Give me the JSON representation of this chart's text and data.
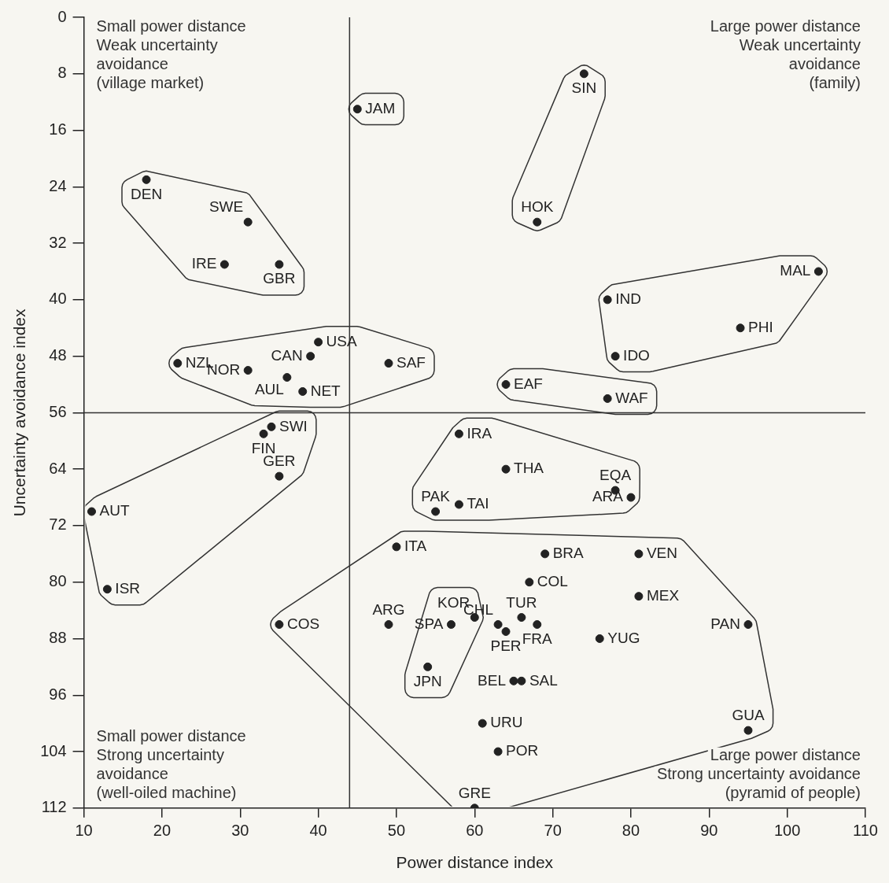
{
  "chart_data": {
    "type": "scatter",
    "xlabel": "Power distance index",
    "ylabel": "Uncertainty avoidance index",
    "xlim": [
      10,
      110
    ],
    "xticks": [
      10,
      20,
      30,
      40,
      50,
      60,
      70,
      80,
      90,
      100,
      110
    ],
    "ylim": [
      112,
      0
    ],
    "yticks": [
      0,
      8,
      16,
      24,
      32,
      40,
      48,
      56,
      64,
      72,
      80,
      88,
      96,
      104,
      112
    ],
    "grid": false,
    "legend": false,
    "marker": "circle",
    "ref_lines": [
      {
        "axis": "x",
        "value": 44,
        "color": "#333333"
      },
      {
        "axis": "y",
        "value": 56,
        "color": "#333333"
      }
    ],
    "annotations": [
      "Small power distance\nWeak uncertainty\navoidance\n(village market)",
      "Large power distance\nWeak uncertainty\navoidance\n(family)",
      "Small power distance\nStrong uncertainty\navoidance\n(well-oiled machine)",
      "Large power distance\nStrong uncertainty avoidance\n(pyramid of people)"
    ],
    "series": [
      {
        "name": "DEN",
        "color": "#222222",
        "x": [
          18
        ],
        "values": [
          23
        ]
      },
      {
        "name": "SWE",
        "color": "#222222",
        "x": [
          31
        ],
        "values": [
          29
        ]
      },
      {
        "name": "IRE",
        "color": "#222222",
        "x": [
          28
        ],
        "values": [
          35
        ]
      },
      {
        "name": "GBR",
        "color": "#222222",
        "x": [
          35
        ],
        "values": [
          35
        ]
      },
      {
        "name": "NZL",
        "color": "#222222",
        "x": [
          22
        ],
        "values": [
          49
        ]
      },
      {
        "name": "NOR",
        "color": "#222222",
        "x": [
          31
        ],
        "values": [
          50
        ]
      },
      {
        "name": "AUL",
        "color": "#222222",
        "x": [
          36
        ],
        "values": [
          51
        ]
      },
      {
        "name": "CAN",
        "color": "#222222",
        "x": [
          39
        ],
        "values": [
          48
        ]
      },
      {
        "name": "USA",
        "color": "#222222",
        "x": [
          40
        ],
        "values": [
          46
        ]
      },
      {
        "name": "NET",
        "color": "#222222",
        "x": [
          38
        ],
        "values": [
          53
        ]
      },
      {
        "name": "SAF",
        "color": "#222222",
        "x": [
          49
        ],
        "values": [
          49
        ]
      },
      {
        "name": "JAM",
        "color": "#222222",
        "x": [
          45
        ],
        "values": [
          13
        ]
      },
      {
        "name": "SIN",
        "color": "#222222",
        "x": [
          74
        ],
        "values": [
          8
        ]
      },
      {
        "name": "HOK",
        "color": "#222222",
        "x": [
          68
        ],
        "values": [
          29
        ]
      },
      {
        "name": "MAL",
        "color": "#222222",
        "x": [
          104
        ],
        "values": [
          36
        ]
      },
      {
        "name": "IND",
        "color": "#222222",
        "x": [
          77
        ],
        "values": [
          40
        ]
      },
      {
        "name": "PHI",
        "color": "#222222",
        "x": [
          94
        ],
        "values": [
          44
        ]
      },
      {
        "name": "IDO",
        "color": "#222222",
        "x": [
          78
        ],
        "values": [
          48
        ]
      },
      {
        "name": "EAF",
        "color": "#222222",
        "x": [
          64
        ],
        "values": [
          52
        ]
      },
      {
        "name": "WAF",
        "color": "#222222",
        "x": [
          77
        ],
        "values": [
          54
        ]
      },
      {
        "name": "SWI",
        "color": "#222222",
        "x": [
          34
        ],
        "values": [
          58
        ]
      },
      {
        "name": "FIN",
        "color": "#222222",
        "x": [
          33
        ],
        "values": [
          59
        ]
      },
      {
        "name": "GER",
        "color": "#222222",
        "x": [
          35
        ],
        "values": [
          65
        ]
      },
      {
        "name": "AUT",
        "color": "#222222",
        "x": [
          11
        ],
        "values": [
          70
        ]
      },
      {
        "name": "ISR",
        "color": "#222222",
        "x": [
          13
        ],
        "values": [
          81
        ]
      },
      {
        "name": "IRA",
        "color": "#222222",
        "x": [
          58
        ],
        "values": [
          59
        ]
      },
      {
        "name": "THA",
        "color": "#222222",
        "x": [
          64
        ],
        "values": [
          64
        ]
      },
      {
        "name": "EQA",
        "color": "#222222",
        "x": [
          78
        ],
        "values": [
          67
        ]
      },
      {
        "name": "ARA",
        "color": "#222222",
        "x": [
          80
        ],
        "values": [
          68
        ]
      },
      {
        "name": "PAK",
        "color": "#222222",
        "x": [
          55
        ],
        "values": [
          70
        ]
      },
      {
        "name": "TAI",
        "color": "#222222",
        "x": [
          58
        ],
        "values": [
          69
        ]
      },
      {
        "name": "ITA",
        "color": "#222222",
        "x": [
          50
        ],
        "values": [
          75
        ]
      },
      {
        "name": "BRA",
        "color": "#222222",
        "x": [
          69
        ],
        "values": [
          76
        ]
      },
      {
        "name": "VEN",
        "color": "#222222",
        "x": [
          81
        ],
        "values": [
          76
        ]
      },
      {
        "name": "COL",
        "color": "#222222",
        "x": [
          67
        ],
        "values": [
          80
        ]
      },
      {
        "name": "MEX",
        "color": "#222222",
        "x": [
          81
        ],
        "values": [
          82
        ]
      },
      {
        "name": "CHL",
        "color": "#222222",
        "x": [
          63
        ],
        "values": [
          86
        ]
      },
      {
        "name": "TUR",
        "color": "#222222",
        "x": [
          66
        ],
        "values": [
          85
        ]
      },
      {
        "name": "FRA",
        "color": "#222222",
        "x": [
          68
        ],
        "values": [
          86
        ]
      },
      {
        "name": "ARG",
        "color": "#222222",
        "x": [
          49
        ],
        "values": [
          86
        ]
      },
      {
        "name": "KOR",
        "color": "#222222",
        "x": [
          60
        ],
        "values": [
          85
        ]
      },
      {
        "name": "SPA",
        "color": "#222222",
        "x": [
          57
        ],
        "values": [
          86
        ]
      },
      {
        "name": "YUG",
        "color": "#222222",
        "x": [
          76
        ],
        "values": [
          88
        ]
      },
      {
        "name": "PAN",
        "color": "#222222",
        "x": [
          95
        ],
        "values": [
          86
        ]
      },
      {
        "name": "COS",
        "color": "#222222",
        "x": [
          35
        ],
        "values": [
          86
        ]
      },
      {
        "name": "PER",
        "color": "#222222",
        "x": [
          64
        ],
        "values": [
          87
        ]
      },
      {
        "name": "BEL",
        "color": "#222222",
        "x": [
          65
        ],
        "values": [
          94
        ]
      },
      {
        "name": "SAL",
        "color": "#222222",
        "x": [
          66
        ],
        "values": [
          94
        ]
      },
      {
        "name": "GUA",
        "color": "#222222",
        "x": [
          95
        ],
        "values": [
          101
        ]
      },
      {
        "name": "URU",
        "color": "#222222",
        "x": [
          61
        ],
        "values": [
          100
        ]
      },
      {
        "name": "POR",
        "color": "#222222",
        "x": [
          63
        ],
        "values": [
          104
        ]
      },
      {
        "name": "GRE",
        "color": "#222222",
        "x": [
          60
        ],
        "values": [
          112
        ]
      },
      {
        "name": "JPN",
        "color": "#222222",
        "x": [
          54
        ],
        "values": [
          92
        ]
      }
    ]
  }
}
